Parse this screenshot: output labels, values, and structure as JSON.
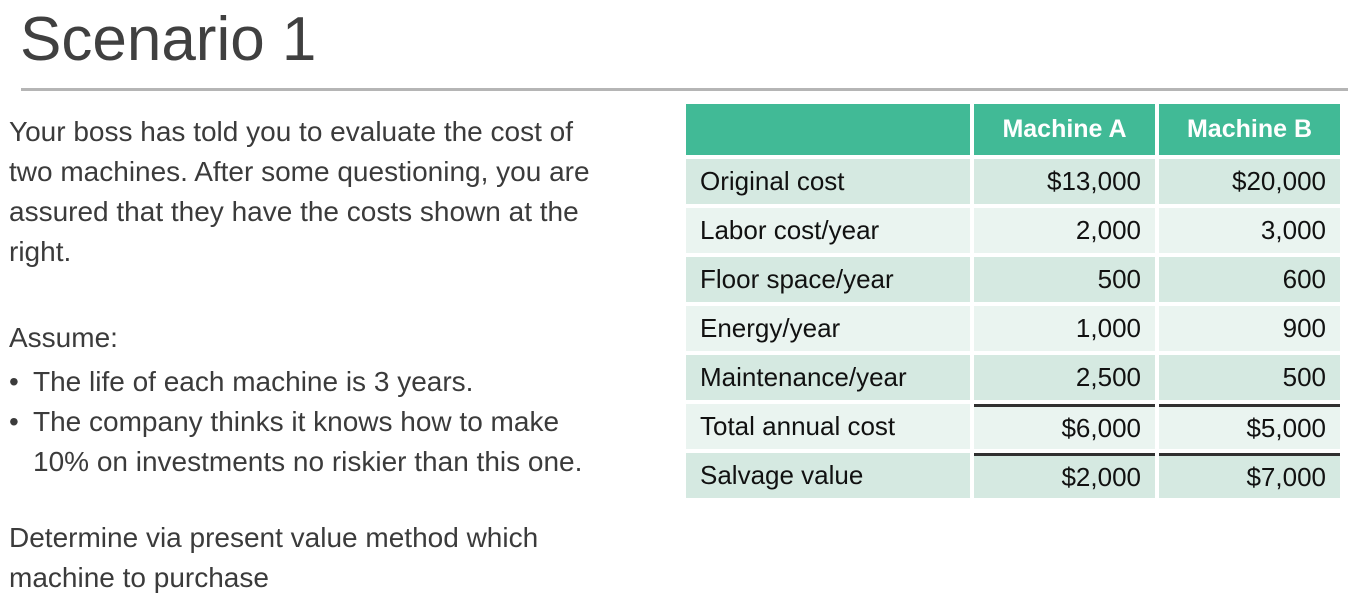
{
  "slide": {
    "title": "Scenario 1",
    "intro": "Your boss has told you to evaluate the cost of two machines. After some questioning, you are assured that they have the costs shown at the right.",
    "assume_label": "Assume:",
    "bullet_glyph": "•",
    "bullets": [
      "The life of each machine is 3 years.",
      "The company thinks it knows how to make 10% on investments no riskier than this one."
    ],
    "task": "Determine via present value method which machine to purchase"
  },
  "table": {
    "header": {
      "corner": "",
      "col_a": "Machine A",
      "col_b": "Machine B"
    },
    "rows": [
      {
        "label": "Original cost",
        "machine_a": "$13,000",
        "machine_b": "$20,000"
      },
      {
        "label": "Labor cost/year",
        "machine_a": "2,000",
        "machine_b": "3,000"
      },
      {
        "label": "Floor space/year",
        "machine_a": "500",
        "machine_b": "600"
      },
      {
        "label": "Energy/year",
        "machine_a": "1,000",
        "machine_b": "900"
      },
      {
        "label": "Maintenance/year",
        "machine_a": "2,500",
        "machine_b": "500"
      },
      {
        "label": "Total annual cost",
        "machine_a": "$6,000",
        "machine_b": "$5,000"
      },
      {
        "label": "Salvage value",
        "machine_a": "$2,000",
        "machine_b": "$7,000"
      }
    ]
  },
  "colors": {
    "header_green": "#41ba96",
    "row_dark": "#d5e9e1",
    "row_light": "#eaf4f0",
    "sum_line": "#303030",
    "title_text": "#404040",
    "body_text": "#3b3b3b",
    "table_text": "#111111",
    "divider_gray": "#b5b5b5"
  }
}
